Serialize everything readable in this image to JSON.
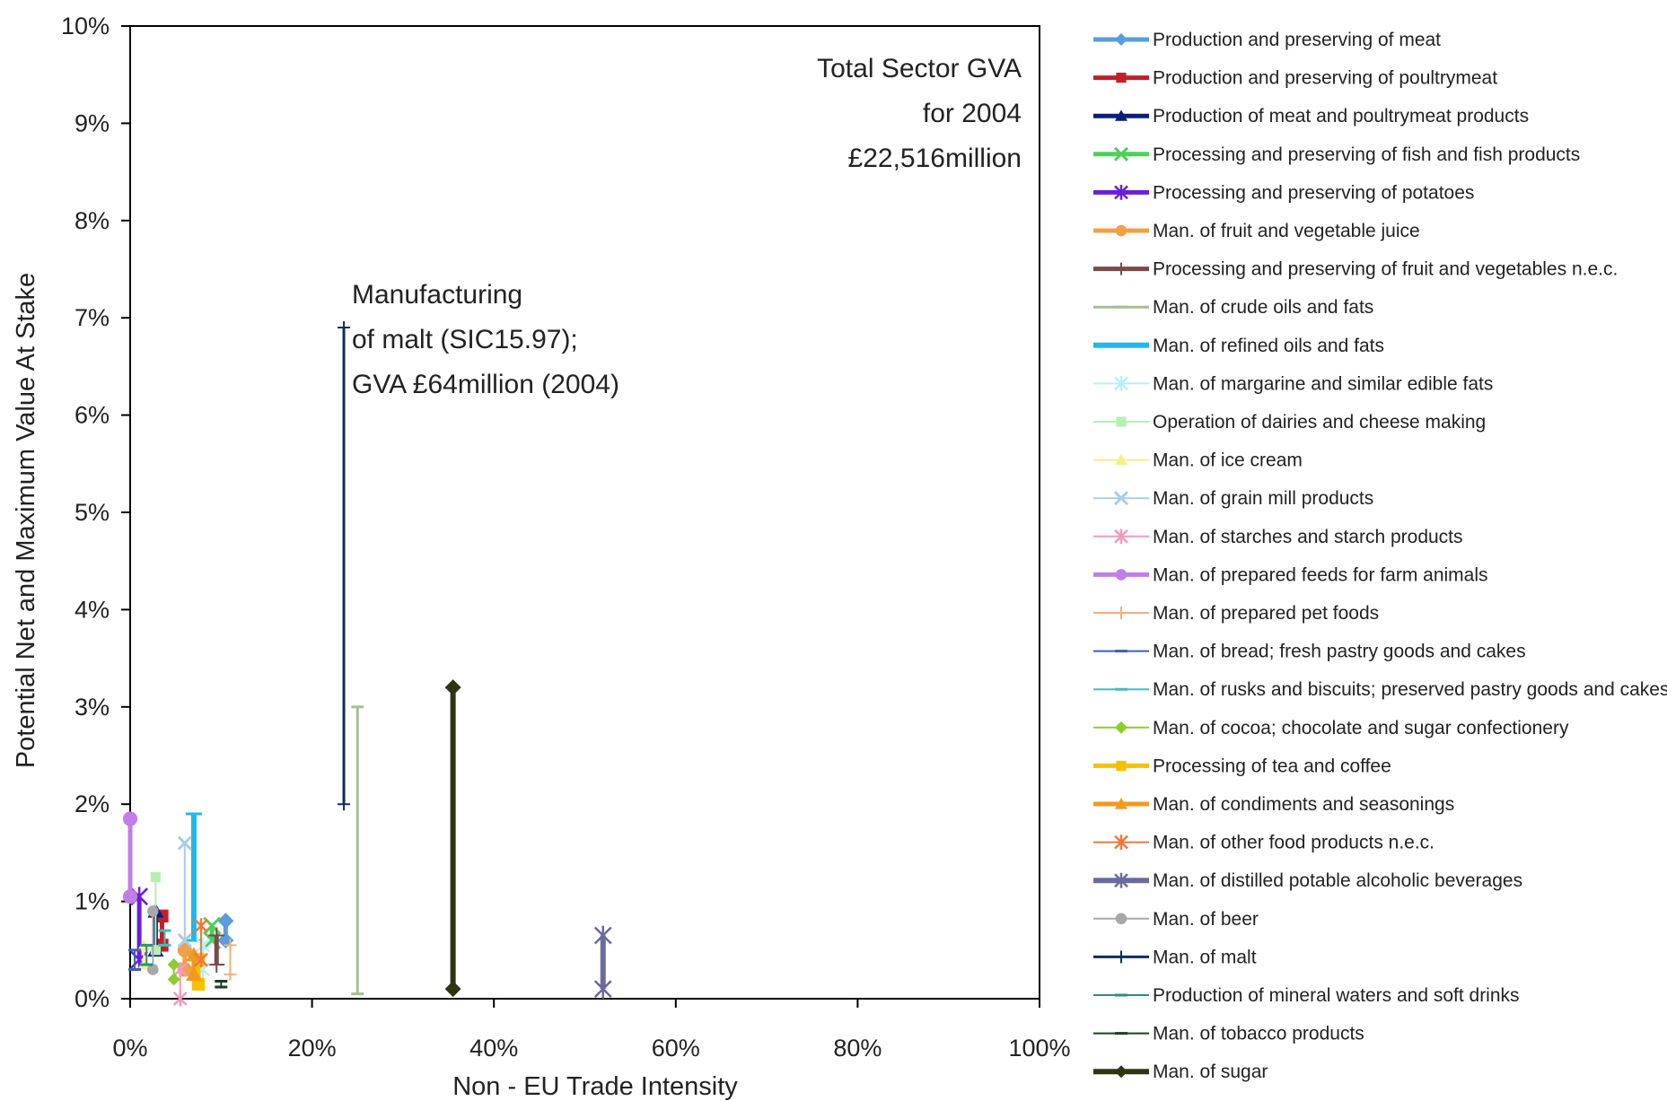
{
  "chart_data": {
    "type": "scatter",
    "xlabel": "Non - EU Trade Intensity",
    "ylabel": "Potential Net and Maximum Value At Stake",
    "xlim": [
      0,
      100
    ],
    "ylim": [
      0,
      10
    ],
    "xticks": [
      "0%",
      "20%",
      "40%",
      "60%",
      "80%",
      "100%"
    ],
    "yticks": [
      "0%",
      "1%",
      "2%",
      "3%",
      "4%",
      "5%",
      "6%",
      "7%",
      "8%",
      "9%",
      "10%"
    ],
    "grid": false,
    "legend_position": "right",
    "annotations": {
      "total_gva": [
        "Total Sector GVA",
        "for 2004",
        "£22,516million"
      ],
      "malt": [
        "Manufacturing",
        "of malt (SIC15.97);",
        "GVA £64million (2004)"
      ]
    },
    "series": [
      {
        "name": "Production and preserving of meat",
        "color": "#5B9BE0",
        "marker": "diamond",
        "width": 5,
        "x": 10.5,
        "ymin": 0.6,
        "ymax": 0.8
      },
      {
        "name": "Production and preserving of poultrymeat",
        "color": "#C0202A",
        "marker": "square",
        "width": 5,
        "x": 3.5,
        "ymin": 0.55,
        "ymax": 0.85
      },
      {
        "name": "Production of meat and poultrymeat products",
        "color": "#0B1E78",
        "marker": "triangle",
        "width": 5,
        "x": 2.8,
        "ymin": 0.5,
        "ymax": 0.9
      },
      {
        "name": "Processing and preserving of fish and fish products",
        "color": "#4FCF5A",
        "marker": "cross",
        "width": 5,
        "x": 9.0,
        "ymin": 0.6,
        "ymax": 0.75
      },
      {
        "name": "Processing and preserving of potatoes",
        "color": "#6A1FD6",
        "marker": "star",
        "width": 5,
        "x": 1.0,
        "ymin": 0.4,
        "ymax": 1.05
      },
      {
        "name": "Man. of fruit and vegetable juice",
        "color": "#F0A048",
        "marker": "circle",
        "width": 5,
        "x": 6.0,
        "ymin": 0.3,
        "ymax": 0.5
      },
      {
        "name": "Processing and preserving of fruit and vegetables n.e.c.",
        "color": "#7A4A4A",
        "marker": "plus",
        "width": 5,
        "x": 9.5,
        "ymin": 0.35,
        "ymax": 0.65
      },
      {
        "name": "Man. of crude oils and fats",
        "color": "#A8BE96",
        "marker": "dash",
        "width": 3,
        "x": 25.0,
        "ymin": 0.05,
        "ymax": 3.0
      },
      {
        "name": "Man. of refined oils and fats",
        "color": "#20B8E8",
        "marker": "dash",
        "width": 6,
        "x": 7.0,
        "ymin": 0.6,
        "ymax": 1.9
      },
      {
        "name": "Man. of margarine and similar edible fats",
        "color": "#B8EEF5",
        "marker": "star",
        "width": 2,
        "x": 8.0,
        "ymin": 0.3,
        "ymax": 0.55
      },
      {
        "name": "Operation of dairies and cheese making",
        "color": "#B6EFB6",
        "marker": "square",
        "width": 2,
        "x": 2.8,
        "ymin": 0.5,
        "ymax": 1.25
      },
      {
        "name": "Man. of ice cream",
        "color": "#F2F08A",
        "marker": "triangle",
        "width": 2,
        "x": 1.5,
        "ymin": 0.35,
        "ymax": 0.55
      },
      {
        "name": "Man. of grain mill products",
        "color": "#A8CCEA",
        "marker": "cross",
        "width": 2,
        "x": 6.0,
        "ymin": 0.6,
        "ymax": 1.6
      },
      {
        "name": "Man. of starches and starch products",
        "color": "#F29AC0",
        "marker": "star",
        "width": 2,
        "x": 5.5,
        "ymin": 0.0,
        "ymax": 0.3
      },
      {
        "name": "Man. of prepared feeds for farm animals",
        "color": "#C07EE8",
        "marker": "circle",
        "width": 5,
        "x": 0.0,
        "ymin": 1.05,
        "ymax": 1.85
      },
      {
        "name": "Man. of prepared pet foods",
        "color": "#F2B07A",
        "marker": "plus",
        "width": 2,
        "x": 11.0,
        "ymin": 0.25,
        "ymax": 0.55
      },
      {
        "name": "Man. of bread; fresh pastry goods and cakes",
        "color": "#3E5FB8",
        "marker": "dash",
        "width": 2,
        "x": 0.5,
        "ymin": 0.3,
        "ymax": 0.5
      },
      {
        "name": "Man. of rusks and biscuits; preserved pastry goods and cakes",
        "color": "#40BFB8",
        "marker": "dash",
        "width": 2,
        "x": 3.8,
        "ymin": 0.55,
        "ymax": 0.7
      },
      {
        "name": "Man. of cocoa; chocolate and sugar confectionery",
        "color": "#8CCC30",
        "marker": "diamond",
        "width": 2,
        "x": 4.8,
        "ymin": 0.2,
        "ymax": 0.35
      },
      {
        "name": "Processing of tea and coffee",
        "color": "#F5C000",
        "marker": "square",
        "width": 5,
        "x": 7.5,
        "ymin": 0.15,
        "ymax": 0.4
      },
      {
        "name": "Man. of condiments and seasonings",
        "color": "#F09A1E",
        "marker": "triangle",
        "width": 5,
        "x": 7.0,
        "ymin": 0.25,
        "ymax": 0.45
      },
      {
        "name": "Man. of other food products n.e.c.",
        "color": "#F0783A",
        "marker": "star",
        "width": 2,
        "x": 7.8,
        "ymin": 0.4,
        "ymax": 0.75
      },
      {
        "name": "Man. of distilled potable alcoholic beverages",
        "color": "#6A6A9E",
        "marker": "star",
        "width": 6,
        "x": 52.0,
        "ymin": 0.1,
        "ymax": 0.65
      },
      {
        "name": "Man. of beer",
        "color": "#A8A8A8",
        "marker": "circle",
        "width": 2,
        "x": 2.5,
        "ymin": 0.3,
        "ymax": 0.9
      },
      {
        "name": "Man. of malt",
        "color": "#0E2E5C",
        "marker": "plus",
        "width": 3,
        "x": 23.5,
        "ymin": 2.0,
        "ymax": 6.9
      },
      {
        "name": "Production of mineral waters and soft drinks",
        "color": "#2E8E78",
        "marker": "dash",
        "width": 2,
        "x": 1.8,
        "ymin": 0.35,
        "ymax": 0.55
      },
      {
        "name": "Man. of tobacco products",
        "color": "#1E3E1E",
        "marker": "dash",
        "width": 2,
        "x": 10.0,
        "ymin": 0.12,
        "ymax": 0.18
      },
      {
        "name": "Man. of sugar",
        "color": "#2E3410",
        "marker": "diamond",
        "width": 6,
        "x": 35.5,
        "ymin": 0.1,
        "ymax": 3.2
      }
    ]
  }
}
